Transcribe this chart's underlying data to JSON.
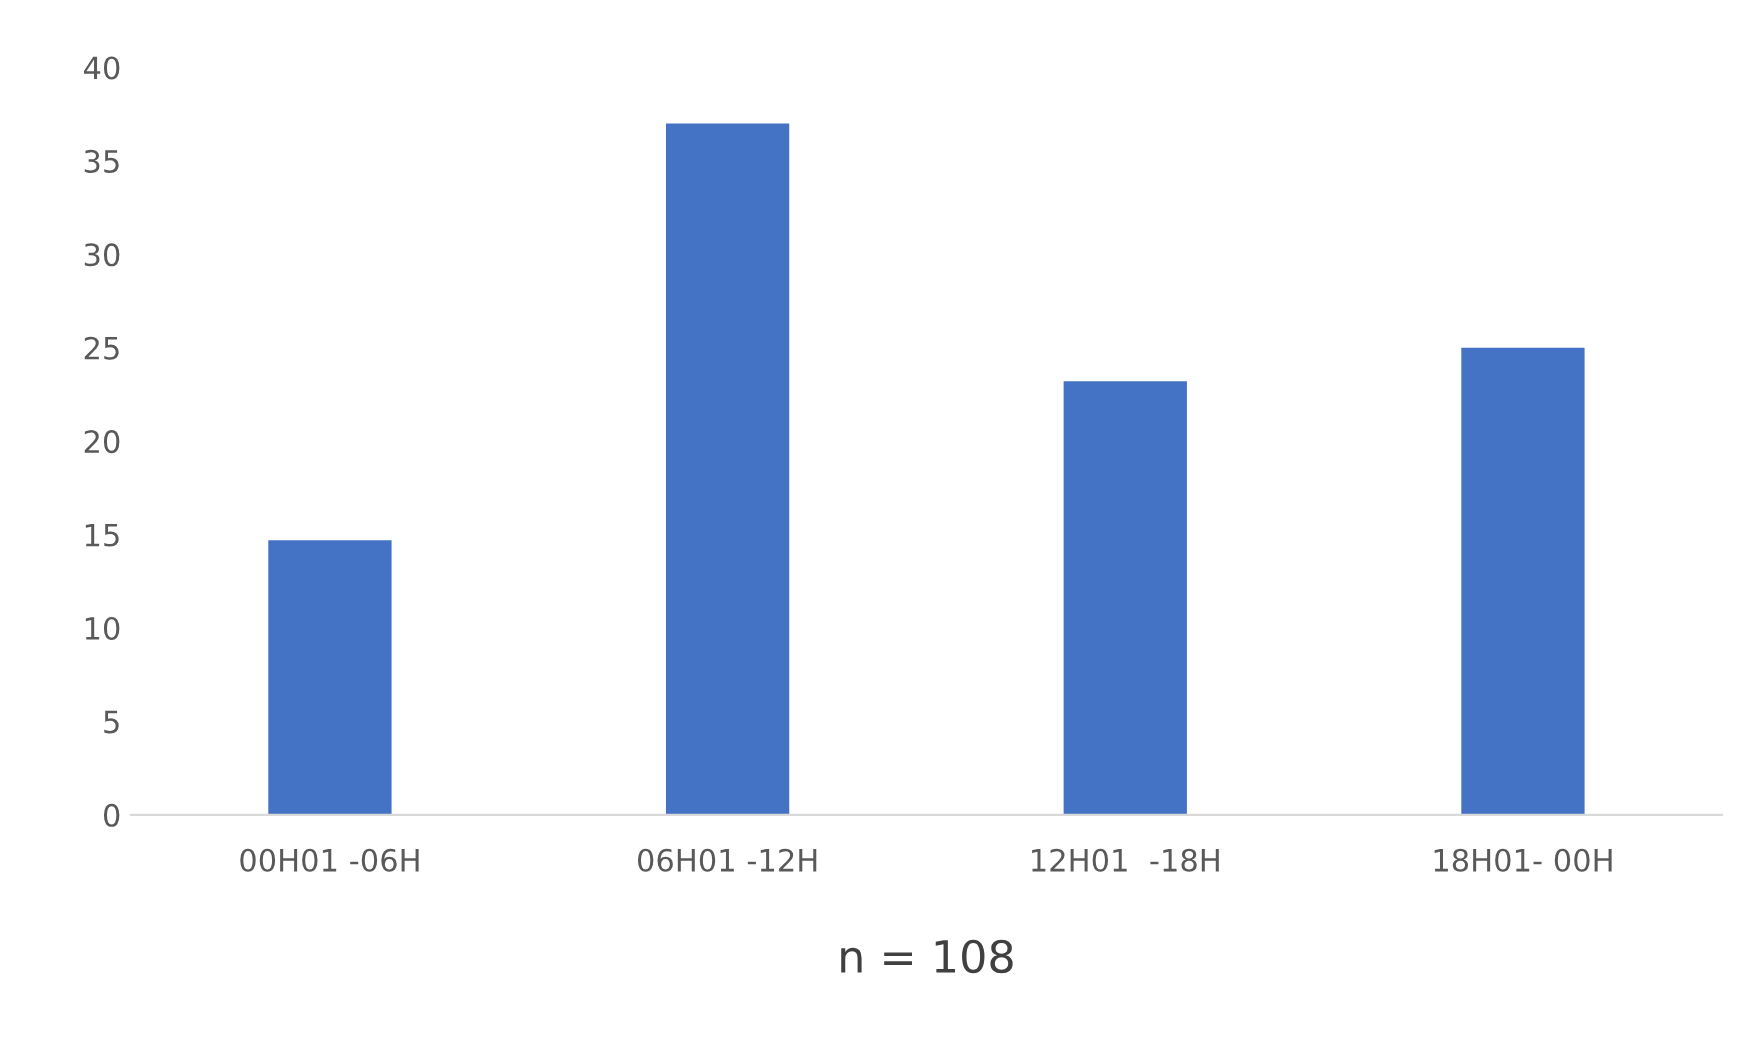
{
  "chart_data": {
    "type": "bar",
    "categories": [
      "00H01 -06H",
      "06H01 -12H",
      "12H01  -18H",
      "18H01- 00H"
    ],
    "values": [
      14.7,
      37,
      23.2,
      25
    ],
    "color": "#4472c4",
    "xlabel": "n = 108",
    "ylim": [
      0,
      40
    ],
    "yticks": [
      0,
      5,
      10,
      15,
      20,
      25,
      30,
      35,
      40
    ],
    "grid": false,
    "legend": false
  }
}
